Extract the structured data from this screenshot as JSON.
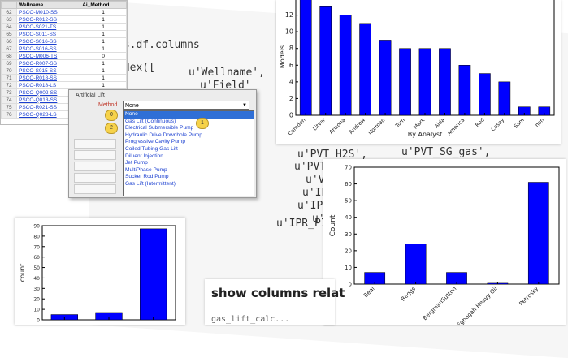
{
  "code": {
    "lines": [
      {
        "text": "ds.df.columns"
      },
      {
        "text": "ndex(["
      },
      {
        "text": "u'Wellname',"
      },
      {
        "text": "u'Field'"
      },
      {
        "text": "u'PVT_H2S',"
      },
      {
        "text": "u'PVT_SG_gas',"
      },
      {
        "text": "u'PVT_VISC_OIL"
      },
      {
        "text": "u'VLP_"
      },
      {
        "text": "u'IPR_RES"
      },
      {
        "text": "u'IPR_VOG"
      },
      {
        "text": "u'IPR_PI'"
      },
      {
        "text": "u'G"
      }
    ]
  },
  "sheet": {
    "columns": [
      "",
      "Wellname",
      "Ai_Method"
    ],
    "rows": [
      {
        "n": "62",
        "w": "PSCO-M010-SS",
        "v": "1"
      },
      {
        "n": "63",
        "w": "PSCO-R012-SS",
        "v": "1"
      },
      {
        "n": "64",
        "w": "PSCO-S021-TS",
        "v": "1"
      },
      {
        "n": "65",
        "w": "PSCO-S011-SS",
        "v": "1"
      },
      {
        "n": "66",
        "w": "PSCO-S016-SS",
        "v": "1"
      },
      {
        "n": "67",
        "w": "PSCO-S016-SS",
        "v": "1"
      },
      {
        "n": "68",
        "w": "PSCO-M006-TS",
        "v": "0"
      },
      {
        "n": "69",
        "w": "PSCO-R007-SS",
        "v": "1"
      },
      {
        "n": "70",
        "w": "PSCO-S015-SS",
        "v": "1"
      },
      {
        "n": "71",
        "w": "PSCO-R018-SS",
        "v": "1"
      },
      {
        "n": "72",
        "w": "PSCO-R018-LS",
        "v": "1"
      },
      {
        "n": "73",
        "w": "PSCO-Q002-SS",
        "v": "1"
      },
      {
        "n": "74",
        "w": "PSCO-Q013-SS",
        "v": "1"
      },
      {
        "n": "75",
        "w": "PSCO-R021-SS",
        "v": "1"
      },
      {
        "n": "76",
        "w": "PSCO-Q028-LS",
        "v": "1"
      }
    ]
  },
  "dialog": {
    "title": "Artificial Lift",
    "method_label": "Method",
    "selected": "None",
    "options": [
      "None",
      "Gas Lift (Continuous)",
      "Electrical Submersible Pump",
      "Hydraulic Drive Downhole Pump",
      "Progressive Cavity Pump",
      "Coiled Tubing Gas Lift",
      "Diluent Injection",
      "Jet Pump",
      "MultiPhase Pump",
      "Sucker Rod Pump",
      "Gas Lift (Intermittent)"
    ],
    "badges": [
      "0",
      "1",
      "2"
    ]
  },
  "header": {
    "text": "show columns relat",
    "code": "gas_lift_calc..."
  },
  "chart_data": [
    {
      "type": "bar",
      "xlabel": "By Analyst",
      "ylabel": "Models",
      "categories": [
        "Camden",
        "Litvar",
        "Arizona",
        "Andrew",
        "Norman",
        "Tom",
        "Mark",
        "Aida",
        "America",
        "Rod",
        "Casey",
        "Sam",
        "nan"
      ],
      "values": [
        14,
        13,
        12,
        11,
        9,
        8,
        8,
        8,
        6,
        5,
        4,
        1,
        1
      ],
      "ylim": [
        0,
        14
      ],
      "yticks": [
        "0",
        "2",
        "4",
        "6",
        "8",
        "10",
        "12"
      ],
      "color": "#0000ff"
    },
    {
      "type": "bar",
      "xlabel": "",
      "ylabel": "Count",
      "categories": [
        "Beal",
        "Beggs",
        "BergmanSutton",
        "Egbogah Heavy Oil",
        "Petrosky"
      ],
      "values": [
        7,
        24,
        7,
        1,
        61
      ],
      "ylim": [
        0,
        70
      ],
      "yticks": [
        "0",
        "10",
        "20",
        "30",
        "40",
        "50",
        "60",
        "70"
      ],
      "color": "#0000ff"
    },
    {
      "type": "bar",
      "xlabel": "",
      "ylabel": "count",
      "categories": [
        "0",
        "1",
        "2"
      ],
      "values": [
        5,
        7,
        87
      ],
      "ylim": [
        0,
        90
      ],
      "yticks": [
        "0",
        "10",
        "20",
        "30",
        "40",
        "50",
        "60",
        "70",
        "80",
        "90"
      ],
      "color": "#0000ff"
    }
  ]
}
